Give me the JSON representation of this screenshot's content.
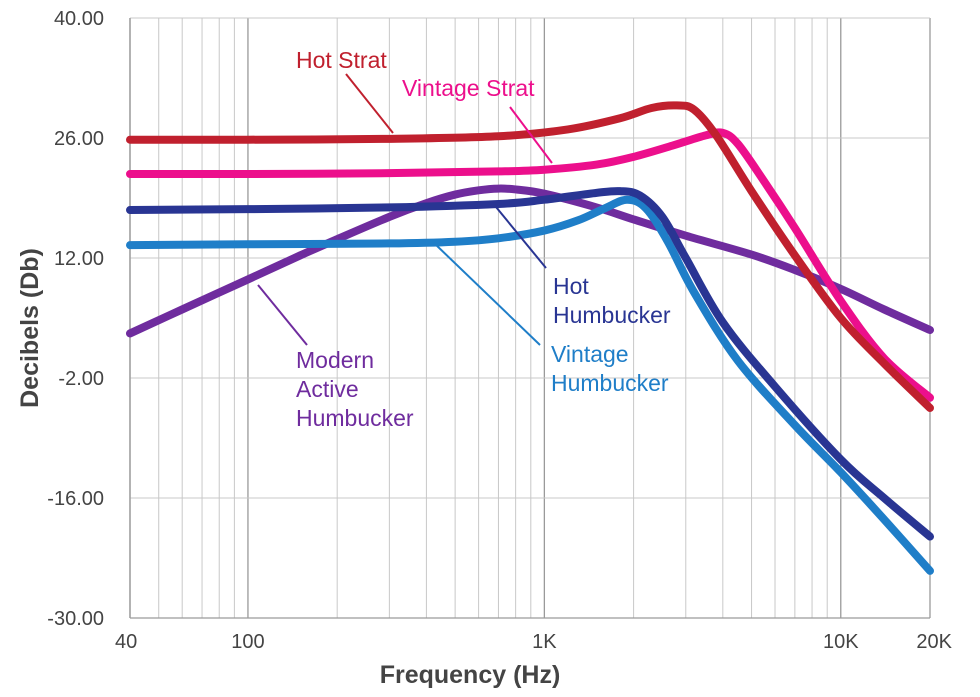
{
  "chart_data": {
    "type": "line",
    "xlabel": "Frequency (Hz)",
    "ylabel": "Decibels (Db)",
    "x_scale": "log",
    "xlim": [
      40,
      20000
    ],
    "ylim": [
      -30,
      40
    ],
    "grid": true,
    "x_ticks": [
      {
        "value": 40,
        "label": "40"
      },
      {
        "value": 100,
        "label": "100"
      },
      {
        "value": 1000,
        "label": "1K"
      },
      {
        "value": 10000,
        "label": "10K"
      },
      {
        "value": 20000,
        "label": "20K"
      }
    ],
    "y_ticks": [
      {
        "value": 40,
        "label": "40.00"
      },
      {
        "value": 26,
        "label": "26.00"
      },
      {
        "value": 12,
        "label": "12.00"
      },
      {
        "value": -2,
        "label": "-2.00"
      },
      {
        "value": -16,
        "label": "-16.00"
      },
      {
        "value": -30,
        "label": "-30.00"
      }
    ],
    "series": [
      {
        "name": "Hot Strat",
        "label_lines": [
          "Hot Strat"
        ],
        "color": "#c0202e",
        "x": [
          40,
          100,
          300,
          700,
          1200,
          1800,
          2300,
          2800,
          3200,
          3800,
          5000,
          7000,
          10000,
          14000,
          20000
        ],
        "y": [
          25.8,
          25.8,
          25.9,
          26.2,
          27.0,
          28.3,
          29.5,
          29.8,
          29.3,
          26.3,
          19.8,
          12.3,
          5.0,
          -0.3,
          -5.5
        ]
      },
      {
        "name": "Vintage Strat",
        "label_lines": [
          "Vintage Strat"
        ],
        "color": "#ec0f8c",
        "x": [
          40,
          100,
          300,
          700,
          1000,
          1500,
          2000,
          2700,
          3500,
          4000,
          4500,
          5500,
          7000,
          10000,
          14000,
          20000
        ],
        "y": [
          21.8,
          21.8,
          21.9,
          22.1,
          22.3,
          22.9,
          23.8,
          25.1,
          26.3,
          26.6,
          25.3,
          21.0,
          15.5,
          7.0,
          0.3,
          -4.3
        ]
      },
      {
        "name": "Hot Humbucker",
        "label_lines": [
          "Hot",
          "Humbucker"
        ],
        "color": "#293593",
        "x": [
          40,
          100,
          300,
          700,
          1000,
          1500,
          1800,
          2100,
          2500,
          3000,
          4000,
          6000,
          10000,
          14000,
          20000
        ],
        "y": [
          17.6,
          17.7,
          17.9,
          18.3,
          18.8,
          19.6,
          19.8,
          19.3,
          16.8,
          12.0,
          4.5,
          -3.0,
          -11.5,
          -16.0,
          -20.5
        ]
      },
      {
        "name": "Vintage Humbucker",
        "label_lines": [
          "Vintage",
          "Humbucker"
        ],
        "color": "#1f7ec8",
        "x": [
          40,
          100,
          300,
          500,
          700,
          1000,
          1300,
          1600,
          1900,
          2200,
          2600,
          3200,
          4500,
          7000,
          10000,
          14000,
          20000
        ],
        "y": [
          13.5,
          13.6,
          13.7,
          13.9,
          14.3,
          15.2,
          16.4,
          17.8,
          18.8,
          17.8,
          14.0,
          8.0,
          0.0,
          -7.5,
          -13.0,
          -18.5,
          -24.5
        ]
      },
      {
        "name": "Modern Active Humbucker",
        "label_lines": [
          "Modern",
          "Active",
          "Humbucker"
        ],
        "color": "#6f2c9e",
        "x": [
          40,
          60,
          100,
          150,
          200,
          300,
          400,
          500,
          600,
          700,
          800,
          1000,
          1500,
          2000,
          3000,
          5000,
          7000,
          10000,
          14000,
          20000
        ],
        "y": [
          3.2,
          6.0,
          9.5,
          12.3,
          14.2,
          16.8,
          18.4,
          19.4,
          19.9,
          20.1,
          20.0,
          19.5,
          17.9,
          16.5,
          14.6,
          12.4,
          10.6,
          8.4,
          6.0,
          3.6
        ]
      }
    ]
  }
}
